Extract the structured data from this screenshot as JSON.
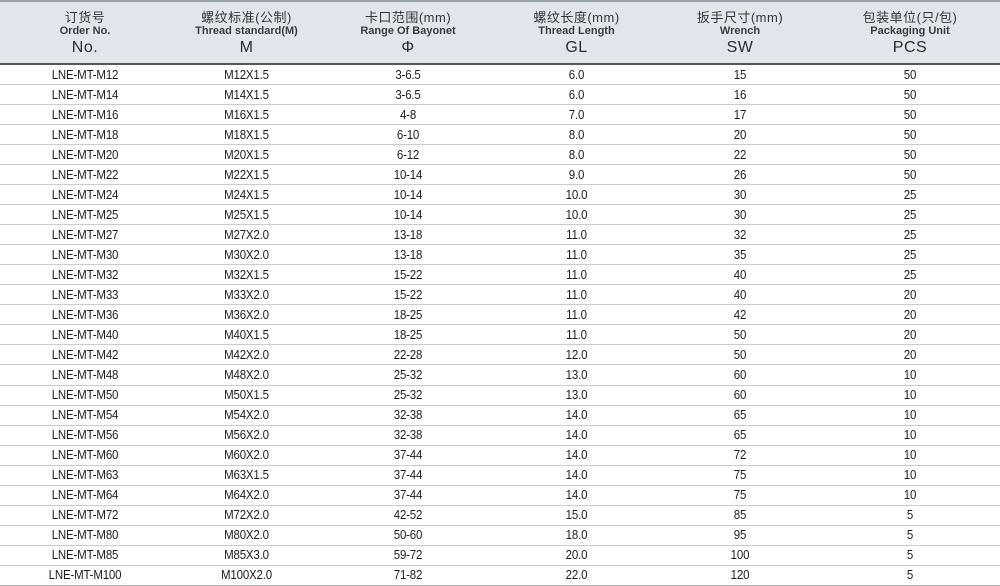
{
  "table": {
    "columns": [
      {
        "zh": "订货号",
        "en": "Order No.",
        "symbol": "No."
      },
      {
        "zh": "螺纹标准(公制)",
        "en": "Thread standard(M)",
        "symbol": "M"
      },
      {
        "zh": "卡口范围(mm)",
        "en": "Range Of Bayonet",
        "symbol": "Φ"
      },
      {
        "zh": "螺纹长度(mm)",
        "en": "Thread Length",
        "symbol": "GL"
      },
      {
        "zh": "扳手尺寸(mm)",
        "en": "Wrench",
        "symbol": "SW"
      },
      {
        "zh": "包装单位(只/包)",
        "en": "Packaging Unit",
        "symbol": "PCS"
      }
    ],
    "rows": [
      [
        "LNE-MT-M12",
        "M12X1.5",
        "3-6.5",
        "6.0",
        "15",
        "50"
      ],
      [
        "LNE-MT-M14",
        "M14X1.5",
        "3-6.5",
        "6.0",
        "16",
        "50"
      ],
      [
        "LNE-MT-M16",
        "M16X1.5",
        "4-8",
        "7.0",
        "17",
        "50"
      ],
      [
        "LNE-MT-M18",
        "M18X1.5",
        "6-10",
        "8.0",
        "20",
        "50"
      ],
      [
        "LNE-MT-M20",
        "M20X1.5",
        "6-12",
        "8.0",
        "22",
        "50"
      ],
      [
        "LNE-MT-M22",
        "M22X1.5",
        "10-14",
        "9.0",
        "26",
        "50"
      ],
      [
        "LNE-MT-M24",
        "M24X1.5",
        "10-14",
        "10.0",
        "30",
        "25"
      ],
      [
        "LNE-MT-M25",
        "M25X1.5",
        "10-14",
        "10.0",
        "30",
        "25"
      ],
      [
        "LNE-MT-M27",
        "M27X2.0",
        "13-18",
        "11.0",
        "32",
        "25"
      ],
      [
        "LNE-MT-M30",
        "M30X2.0",
        "13-18",
        "11.0",
        "35",
        "25"
      ],
      [
        "LNE-MT-M32",
        "M32X1.5",
        "15-22",
        "11.0",
        "40",
        "25"
      ],
      [
        "LNE-MT-M33",
        "M33X2.0",
        "15-22",
        "11.0",
        "40",
        "20"
      ],
      [
        "LNE-MT-M36",
        "M36X2.0",
        "18-25",
        "11.0",
        "42",
        "20"
      ],
      [
        "LNE-MT-M40",
        "M40X1.5",
        "18-25",
        "11.0",
        "50",
        "20"
      ],
      [
        "LNE-MT-M42",
        "M42X2.0",
        "22-28",
        "12.0",
        "50",
        "20"
      ],
      [
        "LNE-MT-M48",
        "M48X2.0",
        "25-32",
        "13.0",
        "60",
        "10"
      ],
      [
        "LNE-MT-M50",
        "M50X1.5",
        "25-32",
        "13.0",
        "60",
        "10"
      ],
      [
        "LNE-MT-M54",
        "M54X2.0",
        "32-38",
        "14.0",
        "65",
        "10"
      ],
      [
        "LNE-MT-M56",
        "M56X2.0",
        "32-38",
        "14.0",
        "65",
        "10"
      ],
      [
        "LNE-MT-M60",
        "M60X2.0",
        "37-44",
        "14.0",
        "72",
        "10"
      ],
      [
        "LNE-MT-M63",
        "M63X1.5",
        "37-44",
        "14.0",
        "75",
        "10"
      ],
      [
        "LNE-MT-M64",
        "M64X2.0",
        "37-44",
        "14.0",
        "75",
        "10"
      ],
      [
        "LNE-MT-M72",
        "M72X2.0",
        "42-52",
        "15.0",
        "85",
        "5"
      ],
      [
        "LNE-MT-M80",
        "M80X2.0",
        "50-60",
        "18.0",
        "95",
        "5"
      ],
      [
        "LNE-MT-M85",
        "M85X3.0",
        "59-72",
        "20.0",
        "100",
        "5"
      ],
      [
        "LNE-MT-M100",
        "M100X2.0",
        "71-82",
        "22.0",
        "120",
        "5"
      ]
    ]
  },
  "colors": {
    "header_bg": "#e2e5eb",
    "header_top_border": "#9ba1aa",
    "header_bottom_border": "#54575c",
    "row_divider": "#cacccf",
    "text": "#1d1d1f"
  }
}
